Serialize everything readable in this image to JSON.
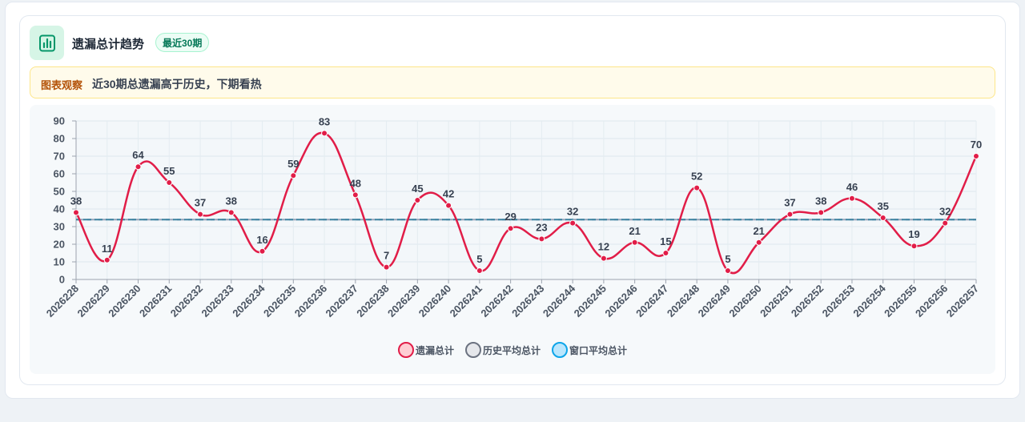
{
  "header": {
    "title": "遗漏总计趋势",
    "badge": "最近30期",
    "icon": "bar-chart-icon"
  },
  "insight": {
    "label": "图表观察",
    "text": "近30期总遗漏高于历史，下期看热"
  },
  "colors": {
    "series": "#e11d48",
    "series_fill": "#fecdd3",
    "history": "#6b7280",
    "history_fill": "#e5e7eb",
    "window": "#0ea5e9",
    "window_fill": "#bae6fd",
    "avg_line": "#3b82a0"
  },
  "chart_data": {
    "type": "line",
    "categories": [
      "2026228",
      "2026229",
      "2026230",
      "2026231",
      "2026232",
      "2026233",
      "2026234",
      "2026235",
      "2026236",
      "2026237",
      "2026238",
      "2026239",
      "2026240",
      "2026241",
      "2026242",
      "2026243",
      "2026244",
      "2026245",
      "2026246",
      "2026247",
      "2026248",
      "2026249",
      "2026250",
      "2026251",
      "2026252",
      "2026253",
      "2026254",
      "2026255",
      "2026256",
      "2026257"
    ],
    "series": [
      {
        "name": "遗漏总计",
        "values": [
          38,
          11,
          64,
          55,
          37,
          38,
          16,
          59,
          83,
          48,
          7,
          45,
          42,
          5,
          29,
          23,
          32,
          12,
          21,
          15,
          52,
          5,
          21,
          37,
          38,
          46,
          35,
          19,
          32,
          70
        ]
      },
      {
        "name": "历史平均总计",
        "values": [
          34,
          34,
          34,
          34,
          34,
          34,
          34,
          34,
          34,
          34,
          34,
          34,
          34,
          34,
          34,
          34,
          34,
          34,
          34,
          34,
          34,
          34,
          34,
          34,
          34,
          34,
          34,
          34,
          34,
          34
        ]
      },
      {
        "name": "窗口平均总计",
        "values": [
          34,
          34,
          34,
          34,
          34,
          34,
          34,
          34,
          34,
          34,
          34,
          34,
          34,
          34,
          34,
          34,
          34,
          34,
          34,
          34,
          34,
          34,
          34,
          34,
          34,
          34,
          34,
          34,
          34,
          34
        ]
      }
    ],
    "yticks": [
      "0",
      "10",
      "20",
      "30",
      "40",
      "50",
      "60",
      "70",
      "80",
      "90"
    ],
    "ylim": [
      0,
      90
    ],
    "grid": true,
    "legend_position": "bottom-center"
  }
}
